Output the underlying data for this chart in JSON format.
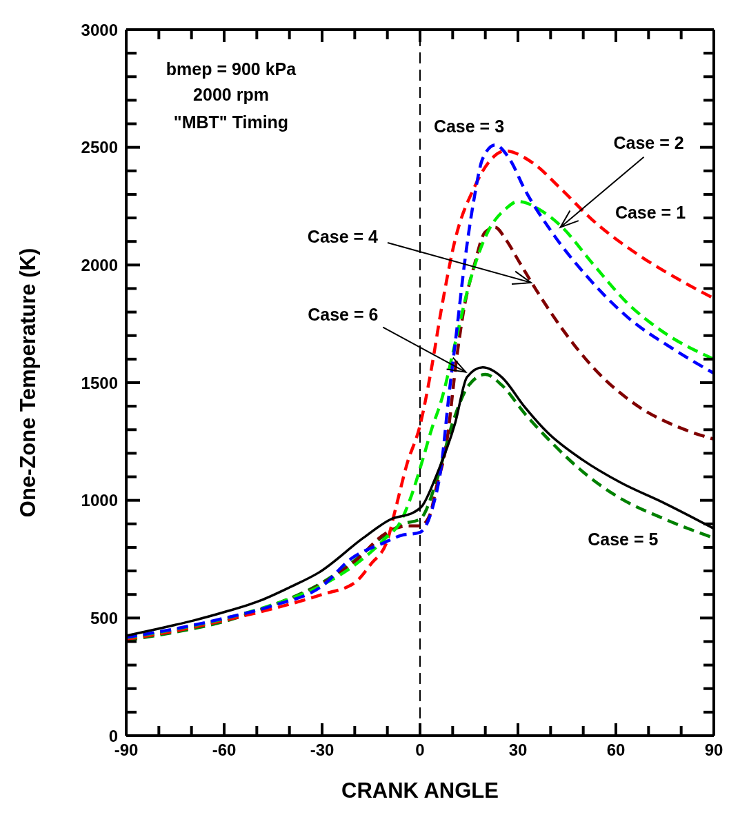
{
  "chart_data": {
    "type": "line",
    "xlabel": "CRANK ANGLE",
    "ylabel": "One-Zone Temperature (K)",
    "xlim": [
      -90,
      90
    ],
    "ylim": [
      0,
      3000
    ],
    "xticks": [
      -90,
      {
        "value": -80,
        "label": null
      },
      {
        "value": -70,
        "label": null
      },
      -60,
      {
        "value": -50,
        "label": null
      },
      {
        "value": -40,
        "label": null
      },
      -30,
      {
        "value": -20,
        "label": null
      },
      {
        "value": -10,
        "label": null
      },
      0,
      {
        "value": 10,
        "label": null
      },
      {
        "value": 20,
        "label": null
      },
      30,
      {
        "value": 40,
        "label": null
      },
      {
        "value": 50,
        "label": null
      },
      60,
      {
        "value": 70,
        "label": null
      },
      {
        "value": 80,
        "label": null
      },
      90
    ],
    "yticks": [
      0,
      {
        "value": 100,
        "label": null
      },
      {
        "value": 200,
        "label": null
      },
      {
        "value": 300,
        "label": null
      },
      {
        "value": 400,
        "label": null
      },
      500,
      {
        "value": 600,
        "label": null
      },
      {
        "value": 700,
        "label": null
      },
      {
        "value": 800,
        "label": null
      },
      {
        "value": 900,
        "label": null
      },
      1000,
      {
        "value": 1100,
        "label": null
      },
      {
        "value": 1200,
        "label": null
      },
      {
        "value": 1300,
        "label": null
      },
      {
        "value": 1400,
        "label": null
      },
      1500,
      {
        "value": 1600,
        "label": null
      },
      {
        "value": 1700,
        "label": null
      },
      {
        "value": 1800,
        "label": null
      },
      {
        "value": 1900,
        "label": null
      },
      2000,
      {
        "value": 2100,
        "label": null
      },
      {
        "value": 2200,
        "label": null
      },
      {
        "value": 2300,
        "label": null
      },
      {
        "value": 2400,
        "label": null
      },
      2500,
      {
        "value": 2600,
        "label": null
      },
      {
        "value": 2700,
        "label": null
      },
      {
        "value": 2800,
        "label": null
      },
      {
        "value": 2900,
        "label": null
      },
      3000
    ],
    "marker": "none",
    "ref_lines": [
      {
        "axis": "x",
        "value": 0,
        "color": "#000000",
        "line_style": "dashed"
      }
    ],
    "annotations": [
      "bmep = 900 kPa",
      "2000 rpm",
      "\"MBT\" Timing",
      "Case = 3",
      "Case = 1",
      {
        "text": "Case = 2",
        "x": 43,
        "y": 2160
      },
      {
        "text": "Case = 4",
        "x": 34,
        "y": 1925
      },
      {
        "text": "Case = 6",
        "x": 14,
        "y": 1545
      },
      {
        "text": "Case = 5",
        "x": 85,
        "y": 870
      }
    ],
    "series": [
      {
        "color": "#008000",
        "line_style": "dashed",
        "x": [
          -90,
          -75,
          -60,
          -45,
          -30,
          -20,
          -10,
          -5,
          0,
          5,
          10,
          15,
          20,
          25,
          32,
          40,
          50,
          60,
          75,
          90
        ],
        "values": [
          405,
          440,
          485,
          555,
          650,
          745,
          860,
          900,
          920,
          1080,
          1330,
          1490,
          1535,
          1490,
          1370,
          1250,
          1120,
          1020,
          920,
          840
        ]
      },
      {
        "color": "#800000",
        "line_style": "dashed",
        "x": [
          -90,
          -75,
          -60,
          -45,
          -30,
          -20,
          -10.4,
          -4,
          0,
          3,
          5,
          8,
          11.4,
          13.5,
          16.5,
          19.9,
          23,
          26.2,
          30.4,
          35.5,
          44,
          53,
          67,
          81,
          90
        ],
        "values": [
          412,
          448,
          493,
          555,
          645,
          740,
          861,
          891,
          891,
          938,
          1055,
          1230,
          1623,
          1817,
          1992,
          2139,
          2160,
          2110,
          2013,
          1896,
          1720,
          1565,
          1398,
          1301,
          1260
        ]
      },
      {
        "color": "#ff0000",
        "line_style": "dashed",
        "x": [
          -90,
          -75,
          -60,
          -45,
          -30,
          -20,
          -15,
          -10,
          -7.6,
          -4,
          0,
          3.5,
          6.6,
          10.8,
          16.5,
          21.4,
          26,
          34.7,
          43,
          53,
          67,
          81,
          90
        ],
        "values": [
          410,
          445,
          490,
          540,
          600,
          650,
          730,
          830,
          958,
          1154,
          1318,
          1560,
          1817,
          2110,
          2326,
          2443,
          2485,
          2432,
          2326,
          2189,
          2042,
          1925,
          1858
        ]
      },
      {
        "color": "#00ee00",
        "line_style": "dashed",
        "x": [
          -90,
          -75,
          -60,
          -45,
          -30,
          -20,
          -10.4,
          -6,
          -2.5,
          0.8,
          3.5,
          6.6,
          10.8,
          15,
          20.7,
          26.2,
          30,
          37.6,
          43,
          53,
          63.6,
          74,
          90
        ],
        "values": [
          416,
          452,
          497,
          557,
          640,
          725,
          841,
          908,
          1025,
          1172,
          1300,
          1427,
          1670,
          1916,
          2139,
          2238,
          2270,
          2227,
          2168,
          2004,
          1837,
          1720,
          1600
        ]
      },
      {
        "color": "#0000ff",
        "line_style": "dashed",
        "x": [
          -90,
          -75,
          -60,
          -45,
          -30,
          -21,
          -11,
          -6,
          0,
          3.8,
          6.6,
          8.7,
          11.4,
          13.5,
          16.5,
          19.2,
          23,
          27.7,
          31.9,
          40.4,
          51,
          63.6,
          77.8,
          90
        ],
        "values": [
          418,
          454,
          499,
          553,
          636,
          753,
          820,
          850,
          864,
          967,
          1154,
          1427,
          1740,
          1992,
          2277,
          2452,
          2510,
          2444,
          2326,
          2139,
          1954,
          1778,
          1641,
          1540
        ]
      },
      {
        "color": "#000000",
        "line_style": "solid",
        "x": [
          -90,
          -80,
          -69.5,
          -60,
          -48.4,
          -40,
          -30.9,
          -17.3,
          -8.9,
          -1.9,
          0.8,
          5,
          10.8,
          14.4,
          19.2,
          25,
          32,
          39,
          50,
          61.5,
          75,
          90
        ],
        "values": [
          425,
          455,
          489,
          525,
          577,
          630,
          694,
          841,
          920,
          949,
          979,
          1105,
          1330,
          1524,
          1565,
          1524,
          1398,
          1289,
          1170,
          1075,
          987,
          880
        ]
      }
    ]
  }
}
